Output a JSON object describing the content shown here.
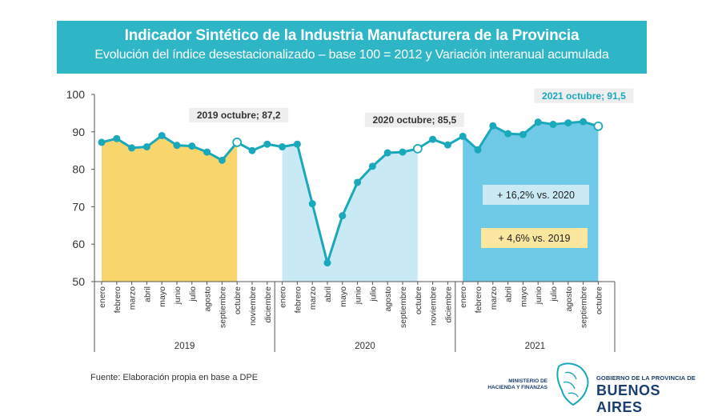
{
  "header": {
    "title": "Indicador Sintético de la Industria Manufacturera de la Provincia",
    "subtitle": "Evolución del índice desestacionalizado – base 100 = 2012 y Variación interanual acumulada"
  },
  "chart_data": {
    "type": "line",
    "title": "Indicador Sintético de la Industria Manufacturera de la Provincia",
    "subtitle": "Evolución del índice desestacionalizado – base 100 = 2012 y Variación interanual acumulada",
    "ylim": [
      50,
      100
    ],
    "yticks": [
      50,
      60,
      70,
      80,
      90,
      100
    ],
    "grid": false,
    "categories": [
      "enero",
      "febrero",
      "marzo",
      "abril",
      "mayo",
      "junio",
      "julio",
      "agosto",
      "septiembre",
      "octubre",
      "noviembre",
      "diciembre",
      "enero",
      "febrero",
      "marzo",
      "abril",
      "mayo",
      "junio",
      "julio",
      "agosto",
      "septiembre",
      "octubre",
      "noviembre",
      "diciembre",
      "enero",
      "febrero",
      "marzo",
      "abril",
      "mayo",
      "junio",
      "julio",
      "agosto",
      "septiembre",
      "octubre"
    ],
    "years": [
      {
        "label": "2019",
        "start": 0,
        "end": 11
      },
      {
        "label": "2020",
        "start": 12,
        "end": 23
      },
      {
        "label": "2021",
        "start": 24,
        "end": 33
      }
    ],
    "values": [
      87.2,
      88.2,
      85.7,
      86.0,
      89.0,
      86.4,
      86.2,
      84.6,
      82.4,
      87.2,
      85.0,
      86.7,
      86.0,
      86.7,
      70.8,
      55.0,
      67.6,
      76.5,
      80.8,
      84.4,
      84.6,
      85.5,
      88.0,
      86.5,
      88.8,
      85.2,
      91.6,
      89.5,
      89.3,
      92.6,
      92.0,
      92.4,
      92.7,
      91.5
    ],
    "shaded_ranges": [
      {
        "start": 0,
        "end": 9,
        "color": "#f9d56e"
      },
      {
        "start": 12,
        "end": 21,
        "color": "#c9e9f5"
      },
      {
        "start": 24,
        "end": 33,
        "color": "#6ecae6"
      }
    ],
    "line_color": "#1aa8bb",
    "highlighted_points": [
      {
        "index": 9,
        "label": "2019 octubre; 87,2"
      },
      {
        "index": 21,
        "label": "2020 octubre; 85,5"
      },
      {
        "index": 33,
        "label": "2021 octubre; 91,5"
      }
    ],
    "annotations": [
      {
        "text": "+ 16,2% vs. 2020",
        "color": "#c9e9f5"
      },
      {
        "text": "+ 4,6% vs. 2019",
        "color": "#fbe7a0"
      }
    ]
  },
  "footer": {
    "source": "Fuente: Elaboración propia en base a DPE",
    "ministry_line1": "MINISTERIO DE",
    "ministry_line2": "HACIENDA Y FINANZAS",
    "gov_small": "GOBIERNO DE LA PROVINCIA DE",
    "gov_big": "BUENOS AIRES"
  }
}
